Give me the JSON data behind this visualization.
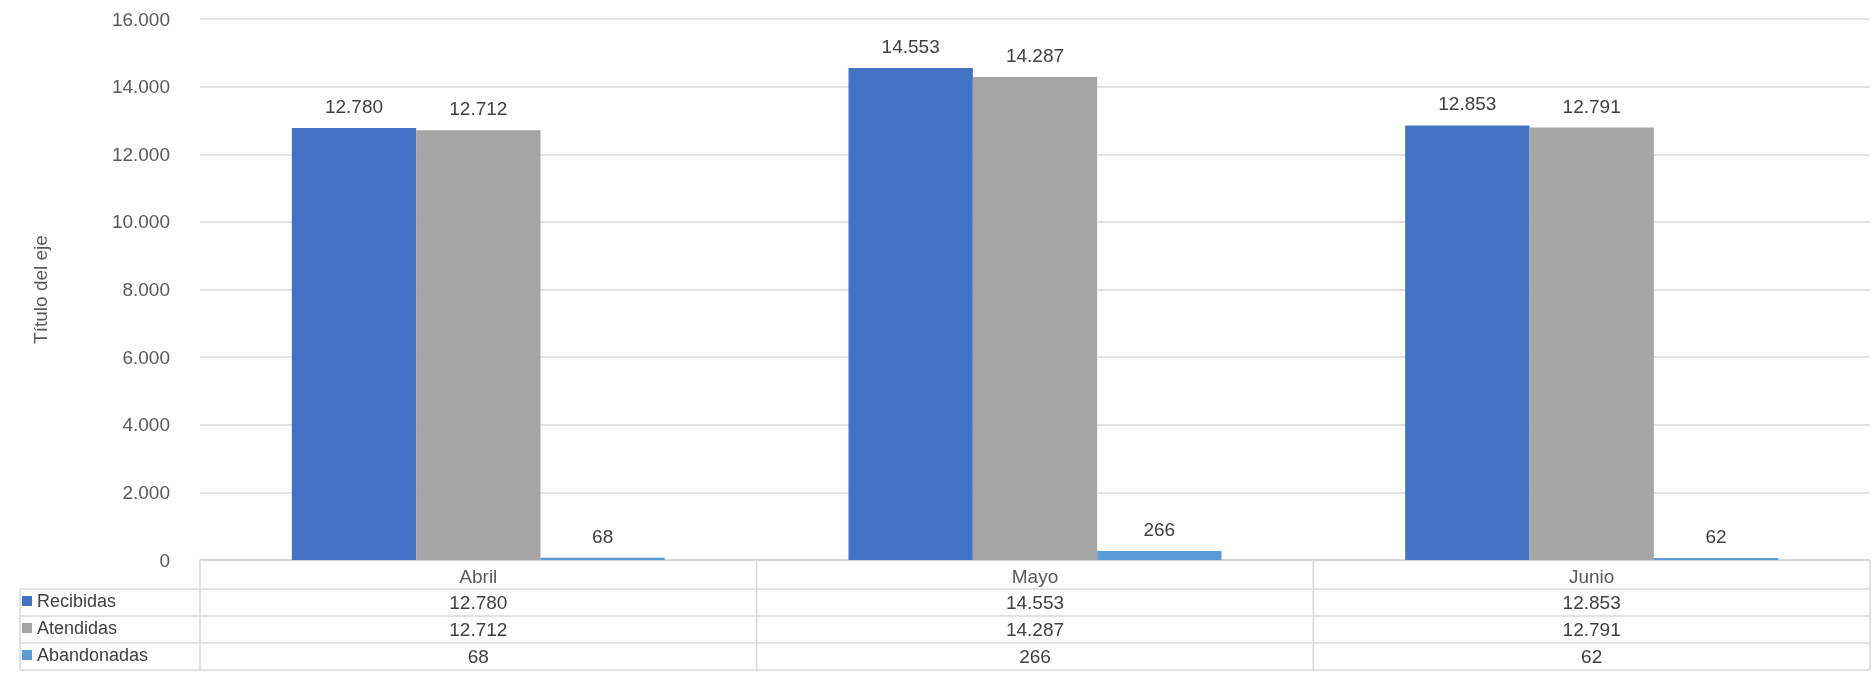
{
  "chart_data": {
    "type": "bar",
    "ylabel": "Título del eje",
    "categories": [
      "Abril",
      "Mayo",
      "Junio"
    ],
    "series": [
      {
        "name": "Recibidas",
        "color": "#4472c4",
        "values": [
          12780,
          14553,
          12853
        ],
        "value_labels": [
          "12.780",
          "14.553",
          "12.853"
        ]
      },
      {
        "name": "Atendidas",
        "color": "#a5a5a5",
        "values": [
          12712,
          14287,
          12791
        ],
        "value_labels": [
          "12.712",
          "14.287",
          "12.791"
        ]
      },
      {
        "name": "Abandonadas",
        "color": "#5b9bd5",
        "values": [
          68,
          266,
          62
        ],
        "value_labels": [
          "68",
          "266",
          "62"
        ]
      }
    ],
    "ylim": [
      0,
      16000
    ],
    "yticks": [
      {
        "value": 0,
        "label": "0"
      },
      {
        "value": 2000,
        "label": "2.000"
      },
      {
        "value": 4000,
        "label": "4.000"
      },
      {
        "value": 6000,
        "label": "6.000"
      },
      {
        "value": 8000,
        "label": "8.000"
      },
      {
        "value": 10000,
        "label": "10.000"
      },
      {
        "value": 12000,
        "label": "12.000"
      },
      {
        "value": 14000,
        "label": "14.000"
      },
      {
        "value": 16000,
        "label": "16.000"
      }
    ],
    "grid": "y",
    "legend": "bottom left"
  }
}
